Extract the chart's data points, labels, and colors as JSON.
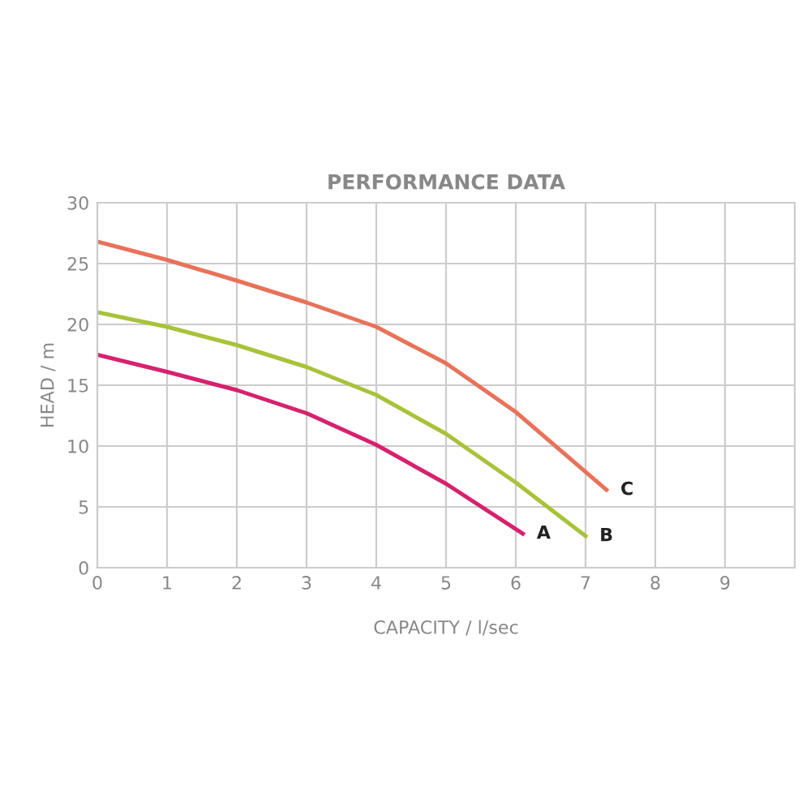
{
  "chart_data": {
    "type": "line",
    "title": "PERFORMANCE DATA",
    "xlabel": "CAPACITY / l/sec",
    "ylabel": "HEAD / m",
    "xlim": [
      0,
      10
    ],
    "ylim": [
      0,
      30
    ],
    "xticks": [
      0,
      1,
      2,
      3,
      4,
      5,
      6,
      7,
      8,
      9
    ],
    "yticks": [
      0,
      5,
      10,
      15,
      20,
      25,
      30
    ],
    "grid": true,
    "legend": false,
    "marker": "none",
    "line_style": "solid",
    "series": [
      {
        "name": "A",
        "color": "#d6226e",
        "x": [
          0,
          1,
          2,
          3,
          4,
          5,
          6.1
        ],
        "values": [
          17.5,
          16.1,
          14.6,
          12.7,
          10.1,
          6.9,
          2.8
        ]
      },
      {
        "name": "B",
        "color": "#a8c23a",
        "x": [
          0,
          1,
          2,
          3,
          4,
          5,
          6,
          7
        ],
        "values": [
          21,
          19.8,
          18.3,
          16.5,
          14.2,
          11,
          7,
          2.6
        ]
      },
      {
        "name": "C",
        "color": "#e8725a",
        "x": [
          0,
          1,
          2,
          3,
          4,
          5,
          6,
          7.3
        ],
        "values": [
          26.8,
          25.3,
          23.6,
          21.8,
          19.8,
          16.8,
          12.8,
          6.4
        ]
      }
    ]
  }
}
